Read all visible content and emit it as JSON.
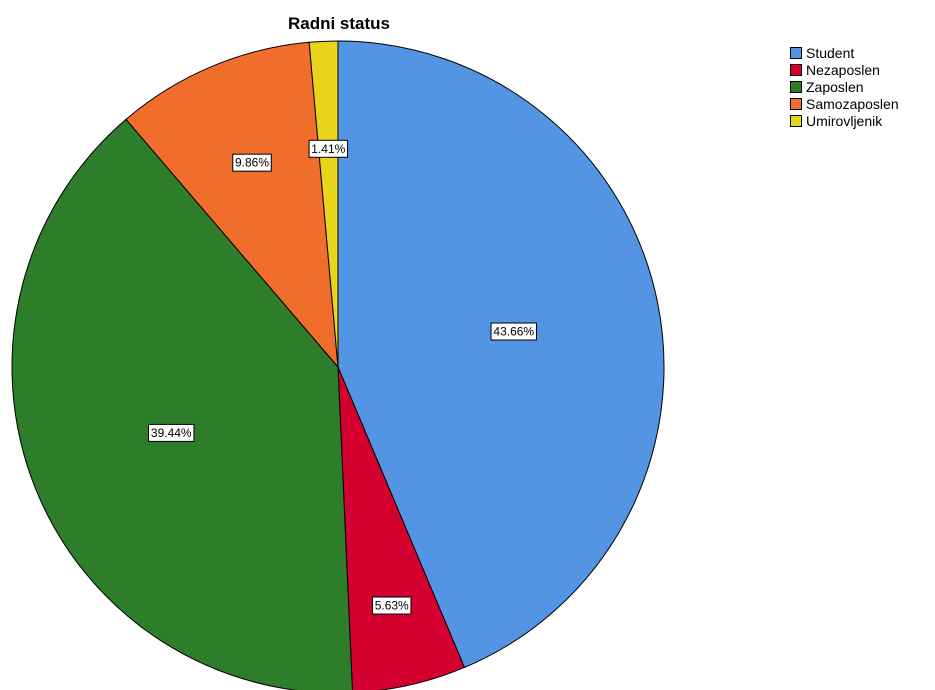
{
  "chart_data": {
    "type": "pie",
    "title": "Radni status",
    "categories": [
      "Student",
      "Nezaposlen",
      "Zaposlen",
      "Samozaposlen",
      "Umirovljenik"
    ],
    "values": [
      43.66,
      5.63,
      39.44,
      9.86,
      1.41
    ],
    "labels": [
      "43.66%",
      "5.63%",
      "39.44%",
      "9.86%",
      "1.41%"
    ],
    "colors": [
      "#5394e3",
      "#d4002f",
      "#2e7d2a",
      "#f06d2c",
      "#e8d51b"
    ],
    "legend_position": "top-right",
    "start": "top, clockwise"
  }
}
